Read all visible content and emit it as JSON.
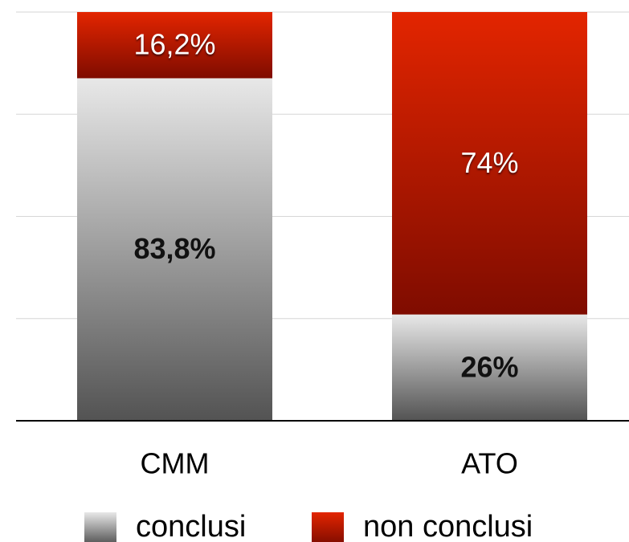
{
  "chart_data": {
    "type": "stacked_bar",
    "categories": [
      "CMM",
      "ATO"
    ],
    "series": [
      {
        "name": "conclusi",
        "color": "#8a8a8a",
        "values": [
          83.8,
          26
        ],
        "value_labels": [
          "83,8%",
          "26%"
        ]
      },
      {
        "name": "non conclusi",
        "color": "#d41400",
        "values": [
          16.2,
          74
        ],
        "value_labels": [
          "16,2%",
          "74%"
        ]
      }
    ],
    "ylim": [
      0,
      100
    ],
    "yticks": [
      0,
      25,
      50,
      75,
      100
    ],
    "grid": true,
    "legend": "bottom"
  }
}
